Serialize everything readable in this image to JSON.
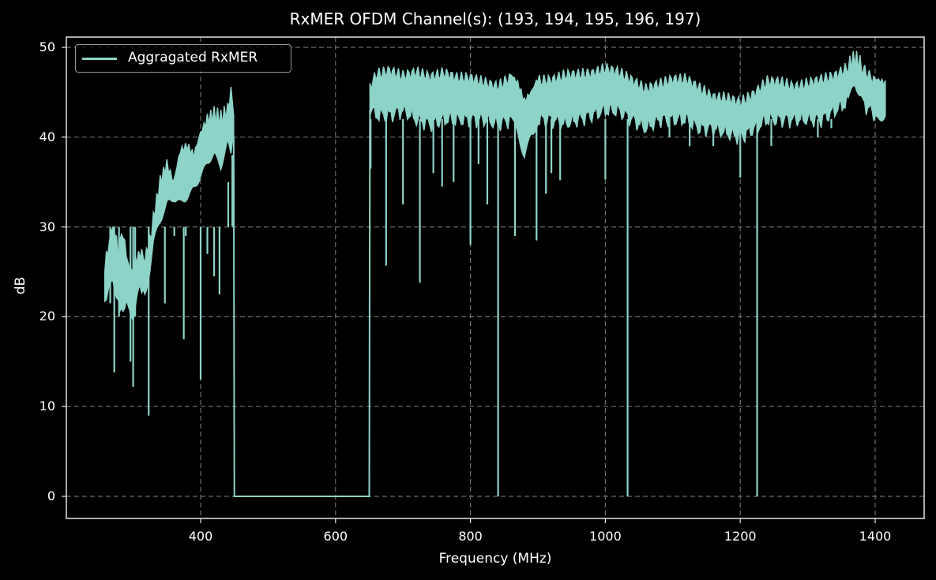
{
  "chart_data": {
    "type": "line",
    "title": "RxMER OFDM Channel(s): (193, 194, 195, 196, 197)",
    "xlabel": "Frequency (MHz)",
    "ylabel": "dB",
    "xlim": [
      205,
      1475
    ],
    "ylim": [
      -2.5,
      51
    ],
    "xticks": [
      400,
      600,
      800,
      1000,
      1200,
      1400
    ],
    "yticks": [
      0,
      10,
      20,
      30,
      40,
      50
    ],
    "grid": true,
    "grid_style": "dashed",
    "legend_position": "upper left",
    "background": "#000000",
    "series": [
      {
        "name": "Aggregated RxMER",
        "legend_label": "Aggragated RxMER",
        "color": "#8dd3c7",
        "envelope_x": [
          258,
          265,
          270,
          278,
          285,
          292,
          300,
          308,
          315,
          322,
          330,
          340,
          350,
          360,
          370,
          380,
          390,
          400,
          410,
          420,
          430,
          440,
          445,
          449
        ],
        "envelope_upper": [
          25,
          28.5,
          30.2,
          27,
          29.5,
          26,
          25,
          27,
          26.5,
          27.5,
          31,
          35,
          37,
          35,
          38.5,
          39,
          38,
          40.5,
          42,
          42.5,
          42,
          43,
          45,
          42
        ],
        "envelope_lower": [
          22,
          23,
          24,
          22,
          21,
          21,
          20,
          22.5,
          23,
          24,
          28,
          30,
          32,
          33,
          33,
          34,
          35,
          36,
          37,
          37.5,
          36,
          39,
          38,
          40
        ],
        "segments": [
          {
            "x": [
              449,
              450,
              650,
              651
            ],
            "y": [
              40,
              0,
              0,
              43
            ]
          }
        ],
        "envelope2_x": [
          651,
          660,
          680,
          700,
          720,
          740,
          760,
          780,
          800,
          820,
          840,
          860,
          870,
          880,
          890,
          900,
          920,
          940,
          960,
          980,
          1000,
          1020,
          1040,
          1060,
          1080,
          1100,
          1120,
          1140,
          1160,
          1180,
          1200,
          1220,
          1240,
          1260,
          1280,
          1300,
          1320,
          1340,
          1360,
          1370,
          1380,
          1400,
          1415
        ],
        "envelope2_upper": [
          46,
          47,
          47.5,
          47,
          47.5,
          47,
          47.5,
          47,
          47,
          46.5,
          46,
          47,
          46,
          44,
          45,
          46.5,
          46.5,
          47,
          47,
          47,
          47.5,
          47,
          46,
          45,
          45.5,
          46,
          46,
          45,
          44,
          44,
          43.5,
          44.5,
          46,
          46,
          45.5,
          46,
          46.5,
          47,
          48,
          48.8,
          48,
          46.5,
          46
        ],
        "envelope2_lower": [
          43,
          42.5,
          42.5,
          43,
          42,
          41.5,
          42,
          42,
          42,
          42,
          41.5,
          42,
          40,
          38,
          41,
          42,
          42,
          41.5,
          42,
          42.5,
          43,
          43,
          42,
          41,
          42,
          42,
          42,
          41,
          41,
          40.5,
          40,
          41,
          42,
          42,
          42,
          42,
          42,
          43,
          44,
          45,
          44,
          42.5,
          43
        ],
        "dropouts": [
          {
            "x": 266,
            "y": 21.5
          },
          {
            "x": 272,
            "y": 13.8
          },
          {
            "x": 279,
            "y": 20
          },
          {
            "x": 296,
            "y": 15
          },
          {
            "x": 300,
            "y": 12.2
          },
          {
            "x": 303,
            "y": 20
          },
          {
            "x": 323,
            "y": 9
          },
          {
            "x": 347,
            "y": 21.5
          },
          {
            "x": 361,
            "y": 29
          },
          {
            "x": 375,
            "y": 17.5
          },
          {
            "x": 378,
            "y": 29
          },
          {
            "x": 397,
            "y": 30
          },
          {
            "x": 400,
            "y": 13
          },
          {
            "x": 410,
            "y": 27
          },
          {
            "x": 420,
            "y": 24.5
          },
          {
            "x": 428,
            "y": 22.5
          },
          {
            "x": 441,
            "y": 35
          },
          {
            "x": 447,
            "y": 38
          },
          {
            "x": 652,
            "y": 36.5
          },
          {
            "x": 675,
            "y": 25.7
          },
          {
            "x": 700,
            "y": 32.5
          },
          {
            "x": 725,
            "y": 23.8
          },
          {
            "x": 745,
            "y": 36
          },
          {
            "x": 758,
            "y": 34.5
          },
          {
            "x": 775,
            "y": 35
          },
          {
            "x": 800,
            "y": 28
          },
          {
            "x": 812,
            "y": 37
          },
          {
            "x": 825,
            "y": 32.5
          },
          {
            "x": 841,
            "y": 0
          },
          {
            "x": 866,
            "y": 29
          },
          {
            "x": 880,
            "y": 38
          },
          {
            "x": 898,
            "y": 28.5
          },
          {
            "x": 912,
            "y": 33.7
          },
          {
            "x": 920,
            "y": 36
          },
          {
            "x": 933,
            "y": 35.2
          },
          {
            "x": 1000,
            "y": 35.3
          },
          {
            "x": 1033,
            "y": 0
          },
          {
            "x": 1095,
            "y": 40
          },
          {
            "x": 1125,
            "y": 39
          },
          {
            "x": 1160,
            "y": 39
          },
          {
            "x": 1200,
            "y": 35.5
          },
          {
            "x": 1225,
            "y": 0
          },
          {
            "x": 1246,
            "y": 39
          },
          {
            "x": 1315,
            "y": 40
          },
          {
            "x": 1335,
            "y": 41
          },
          {
            "x": 1412,
            "y": 42
          }
        ]
      }
    ]
  },
  "colors": {
    "line": "#8dd3c7",
    "grid": "#6e6e6e",
    "frame": "#e6e6e6",
    "background": "#000000",
    "legend_border": "#999999"
  }
}
